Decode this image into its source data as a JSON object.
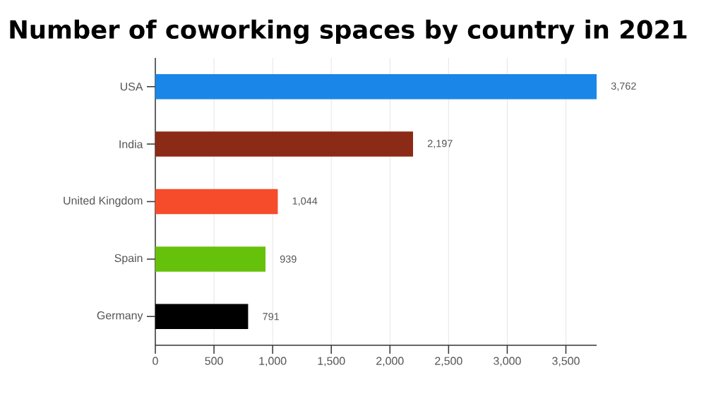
{
  "chart_data": {
    "type": "bar",
    "orientation": "horizontal",
    "title": "Number of coworking spaces by country in 2021",
    "categories": [
      "USA",
      "India",
      "United Kingdom",
      "Spain",
      "Germany"
    ],
    "values": [
      3762,
      2197,
      1044,
      939,
      791
    ],
    "colors": [
      "#1a86e8",
      "#8b2a17",
      "#f64c2b",
      "#66c10a",
      "#000000"
    ],
    "value_labels": [
      "3,762",
      "2,197",
      "1,044",
      "939",
      "791"
    ],
    "xlim": [
      0,
      3762
    ],
    "xticks": [
      0,
      500,
      {
        "value": 1000,
        "label": "1,000"
      },
      {
        "value": 1500,
        "label": "1,500"
      },
      {
        "value": 2000,
        "label": "2,000"
      },
      {
        "value": 2500,
        "label": "2,500"
      },
      {
        "value": 3000,
        "label": "3,000"
      },
      {
        "value": 3500,
        "label": "3,500"
      }
    ],
    "grid": "x"
  }
}
